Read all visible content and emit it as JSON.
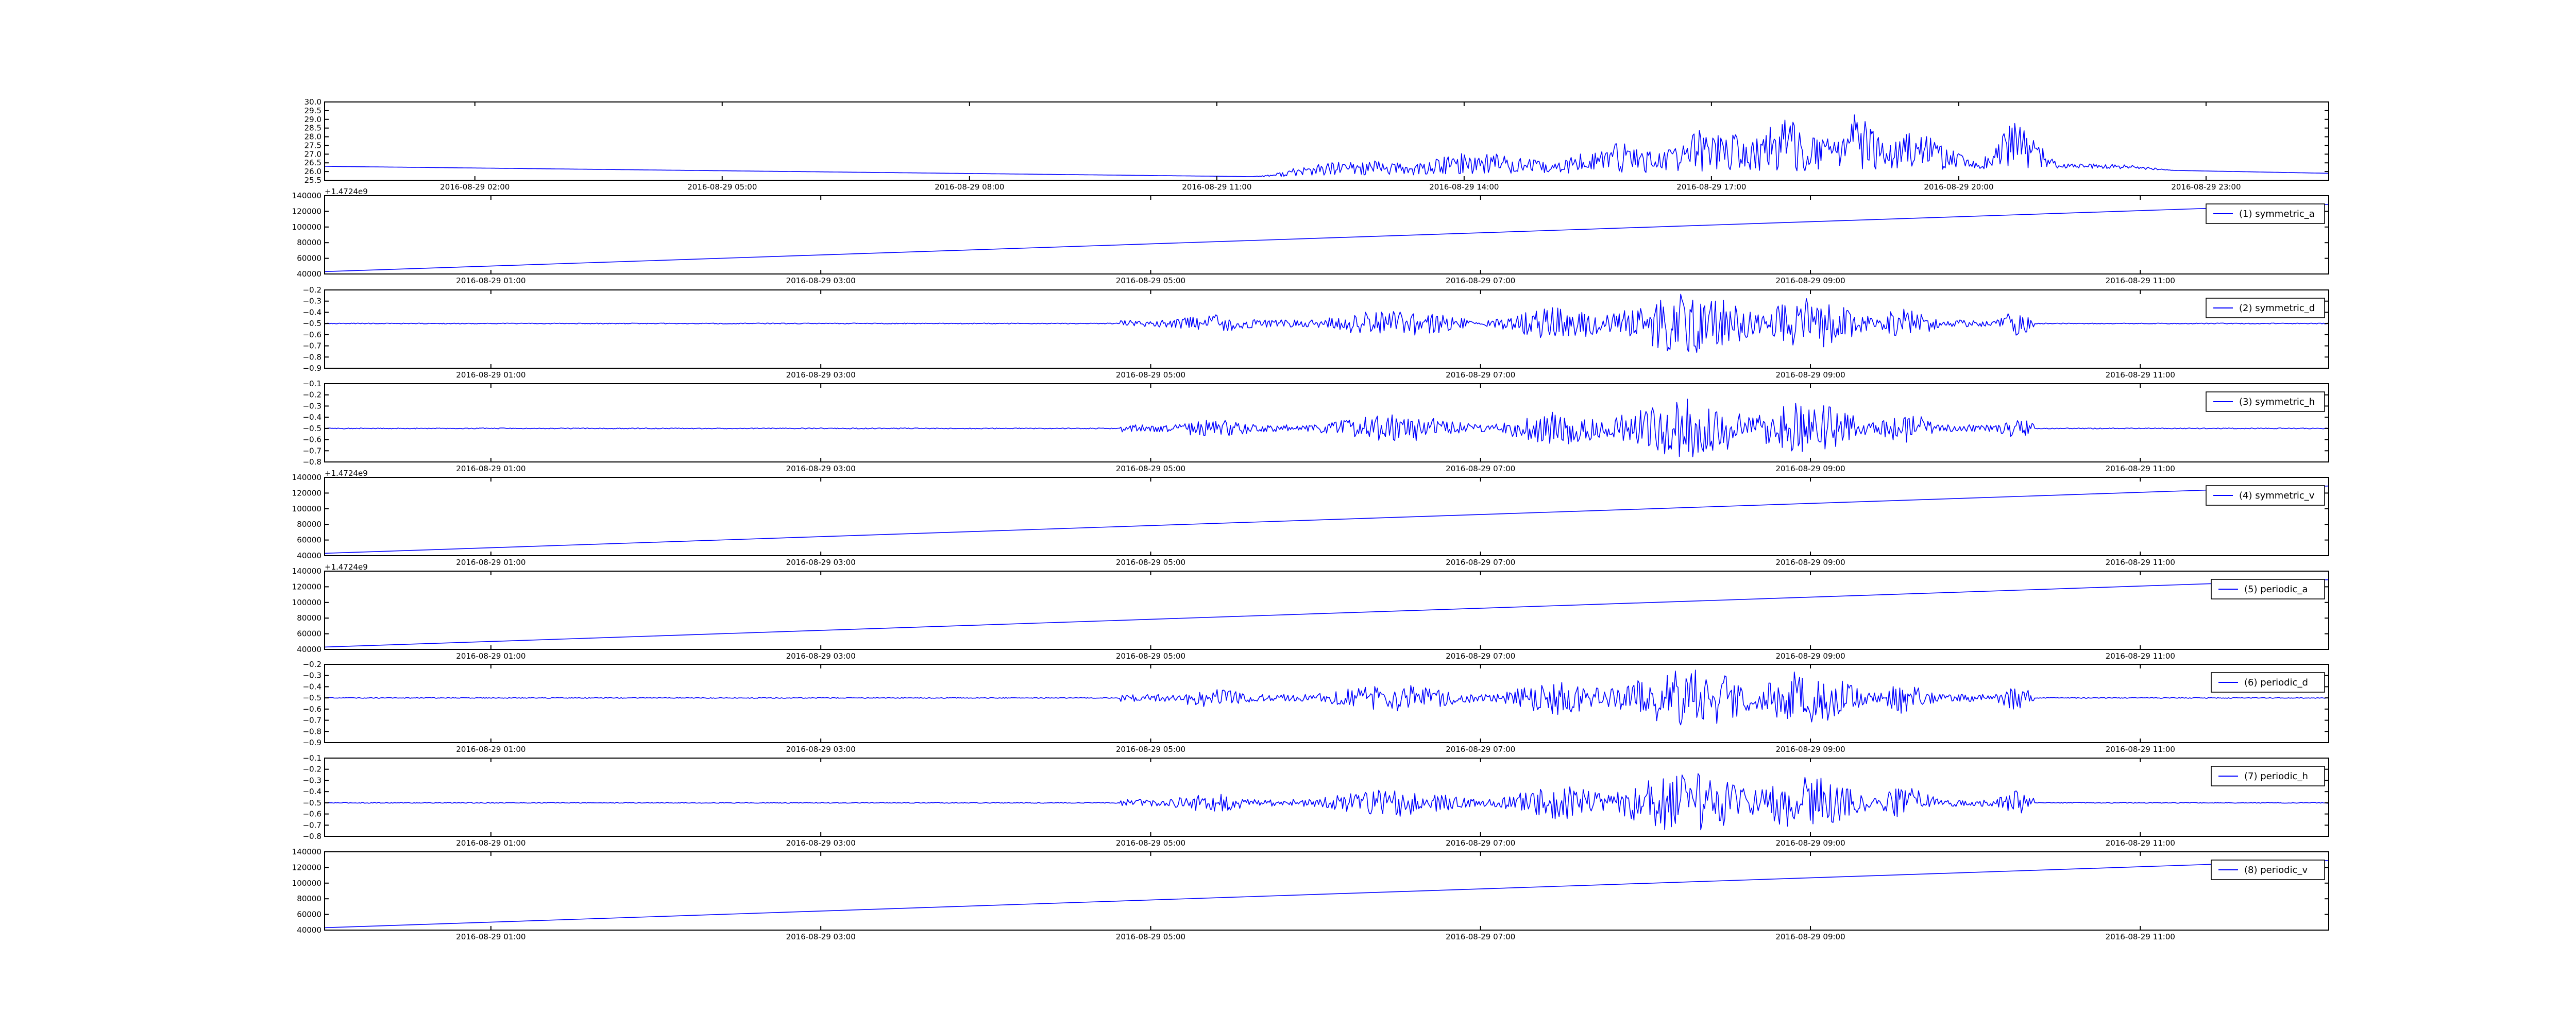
{
  "figure": {
    "background": "#ffffff",
    "line_color": "#0000ff"
  },
  "chart_data": [
    {
      "type": "line",
      "panel": 0,
      "title": "",
      "ylim": [
        25.5,
        30.0
      ],
      "yticks": [
        "30.0",
        "29.5",
        "29.0",
        "28.5",
        "28.0",
        "27.5",
        "27.0",
        "26.5",
        "26.0",
        "25.5"
      ],
      "yticks_values": [
        30.0,
        29.5,
        29.0,
        28.5,
        28.0,
        27.5,
        27.0,
        26.5,
        26.0,
        25.5
      ],
      "xticks": [
        "2016-08-29 02:00",
        "2016-08-29 05:00",
        "2016-08-29 08:00",
        "2016-08-29 11:00",
        "2016-08-29 14:00",
        "2016-08-29 17:00",
        "2016-08-29 20:00",
        "2016-08-29 23:00"
      ],
      "x_range": [
        "2016-08-29 00:08",
        "2016-08-29 24:22"
      ],
      "baseline": [
        {
          "x": "2016-08-29 00:08",
          "y": 26.3
        },
        {
          "x": "2016-08-29 11:30",
          "y": 25.7
        },
        {
          "x": "2016-08-29 21:00",
          "y": 26.2
        },
        {
          "x": "2016-08-29 24:22",
          "y": 25.9
        }
      ],
      "activity_start": "2016-08-29 11:20",
      "activity_end": "2016-08-29 22:30",
      "activity_max": 29.7,
      "legend": null
    },
    {
      "type": "line",
      "panel": 1,
      "offset_text": "+1.4724e9",
      "ylim": [
        40000,
        140000
      ],
      "yticks": [
        "140000",
        "120000",
        "100000",
        "80000",
        "60000",
        "40000"
      ],
      "yticks_values": [
        140000,
        120000,
        100000,
        80000,
        60000,
        40000
      ],
      "xticks": [
        "2016-08-29 01:00",
        "2016-08-29 03:00",
        "2016-08-29 05:00",
        "2016-08-29 07:00",
        "2016-08-29 09:00",
        "2016-08-29 11:00"
      ],
      "x_range": [
        "2016-08-29 00:23",
        "2016-08-29 12:38"
      ],
      "points": [
        {
          "x": "2016-08-29 00:23",
          "y": 43000
        },
        {
          "x": "2016-08-29 12:38",
          "y": 129000
        }
      ],
      "legend": "(1) symmetric_a"
    },
    {
      "type": "line",
      "panel": 2,
      "ylim": [
        -0.9,
        -0.2
      ],
      "yticks": [
        "−0.2",
        "−0.3",
        "−0.4",
        "−0.5",
        "−0.6",
        "−0.7",
        "−0.8",
        "−0.9"
      ],
      "yticks_values": [
        -0.2,
        -0.3,
        -0.4,
        -0.5,
        -0.6,
        -0.7,
        -0.8,
        -0.9
      ],
      "xticks": [
        "2016-08-29 01:00",
        "2016-08-29 03:00",
        "2016-08-29 05:00",
        "2016-08-29 07:00",
        "2016-08-29 09:00",
        "2016-08-29 11:00"
      ],
      "x_range": [
        "2016-08-29 00:23",
        "2016-08-29 12:38"
      ],
      "baseline_y": -0.5,
      "activity_start": "2016-08-29 05:15",
      "activity_end": "2016-08-29 10:50",
      "activity_amplitude": 0.27,
      "legend": "(2) symmetric_d"
    },
    {
      "type": "line",
      "panel": 3,
      "ylim": [
        -0.8,
        -0.1
      ],
      "yticks": [
        "−0.1",
        "−0.2",
        "−0.3",
        "−0.4",
        "−0.5",
        "−0.6",
        "−0.7",
        "−0.8"
      ],
      "yticks_values": [
        -0.1,
        -0.2,
        -0.3,
        -0.4,
        -0.5,
        -0.6,
        -0.7,
        -0.8
      ],
      "xticks": [
        "2016-08-29 01:00",
        "2016-08-29 03:00",
        "2016-08-29 05:00",
        "2016-08-29 07:00",
        "2016-08-29 09:00",
        "2016-08-29 11:00"
      ],
      "x_range": [
        "2016-08-29 00:23",
        "2016-08-29 12:38"
      ],
      "baseline_y": -0.5,
      "activity_start": "2016-08-29 05:15",
      "activity_end": "2016-08-29 10:50",
      "activity_amplitude": 0.27,
      "legend": "(3) symmetric_h"
    },
    {
      "type": "line",
      "panel": 4,
      "offset_text": "+1.4724e9",
      "ylim": [
        40000,
        140000
      ],
      "yticks": [
        "140000",
        "120000",
        "100000",
        "80000",
        "60000",
        "40000"
      ],
      "yticks_values": [
        140000,
        120000,
        100000,
        80000,
        60000,
        40000
      ],
      "xticks": [
        "2016-08-29 01:00",
        "2016-08-29 03:00",
        "2016-08-29 05:00",
        "2016-08-29 07:00",
        "2016-08-29 09:00",
        "2016-08-29 11:00"
      ],
      "x_range": [
        "2016-08-29 00:23",
        "2016-08-29 12:38"
      ],
      "points": [
        {
          "x": "2016-08-29 00:23",
          "y": 43000
        },
        {
          "x": "2016-08-29 12:38",
          "y": 129000
        }
      ],
      "legend": "(4) symmetric_v"
    },
    {
      "type": "line",
      "panel": 5,
      "offset_text": "+1.4724e9",
      "ylim": [
        40000,
        140000
      ],
      "yticks": [
        "140000",
        "120000",
        "100000",
        "80000",
        "60000",
        "40000"
      ],
      "yticks_values": [
        140000,
        120000,
        100000,
        80000,
        60000,
        40000
      ],
      "xticks": [
        "2016-08-29 01:00",
        "2016-08-29 03:00",
        "2016-08-29 05:00",
        "2016-08-29 07:00",
        "2016-08-29 09:00",
        "2016-08-29 11:00"
      ],
      "x_range": [
        "2016-08-29 00:23",
        "2016-08-29 12:38"
      ],
      "points": [
        {
          "x": "2016-08-29 00:23",
          "y": 43000
        },
        {
          "x": "2016-08-29 12:38",
          "y": 129000
        }
      ],
      "legend": "(5) periodic_a"
    },
    {
      "type": "line",
      "panel": 6,
      "ylim": [
        -0.9,
        -0.2
      ],
      "yticks": [
        "−0.2",
        "−0.3",
        "−0.4",
        "−0.5",
        "−0.6",
        "−0.7",
        "−0.8",
        "−0.9"
      ],
      "yticks_values": [
        -0.2,
        -0.3,
        -0.4,
        -0.5,
        -0.6,
        -0.7,
        -0.8,
        -0.9
      ],
      "xticks": [
        "2016-08-29 01:00",
        "2016-08-29 03:00",
        "2016-08-29 05:00",
        "2016-08-29 07:00",
        "2016-08-29 09:00",
        "2016-08-29 11:00"
      ],
      "x_range": [
        "2016-08-29 00:23",
        "2016-08-29 12:38"
      ],
      "baseline_y": -0.5,
      "activity_start": "2016-08-29 05:15",
      "activity_end": "2016-08-29 10:50",
      "activity_amplitude": 0.27,
      "legend": "(6) periodic_d"
    },
    {
      "type": "line",
      "panel": 7,
      "ylim": [
        -0.8,
        -0.1
      ],
      "yticks": [
        "−0.1",
        "−0.2",
        "−0.3",
        "−0.4",
        "−0.5",
        "−0.6",
        "−0.7",
        "−0.8"
      ],
      "yticks_values": [
        -0.1,
        -0.2,
        -0.3,
        -0.4,
        -0.5,
        -0.6,
        -0.7,
        -0.8
      ],
      "xticks": [
        "2016-08-29 01:00",
        "2016-08-29 03:00",
        "2016-08-29 05:00",
        "2016-08-29 07:00",
        "2016-08-29 09:00",
        "2016-08-29 11:00"
      ],
      "x_range": [
        "2016-08-29 00:23",
        "2016-08-29 12:38"
      ],
      "baseline_y": -0.5,
      "activity_start": "2016-08-29 05:15",
      "activity_end": "2016-08-29 10:50",
      "activity_amplitude": 0.27,
      "legend": "(7) periodic_h"
    },
    {
      "type": "line",
      "panel": 8,
      "ylim": [
        40000,
        140000
      ],
      "yticks": [
        "140000",
        "120000",
        "100000",
        "80000",
        "60000",
        "40000"
      ],
      "yticks_values": [
        140000,
        120000,
        100000,
        80000,
        60000,
        40000
      ],
      "xticks": [
        "2016-08-29 01:00",
        "2016-08-29 03:00",
        "2016-08-29 05:00",
        "2016-08-29 07:00",
        "2016-08-29 09:00",
        "2016-08-29 11:00"
      ],
      "x_range": [
        "2016-08-29 00:23",
        "2016-08-29 12:38"
      ],
      "points": [
        {
          "x": "2016-08-29 00:23",
          "y": 43000
        },
        {
          "x": "2016-08-29 12:38",
          "y": 129000
        }
      ],
      "legend": "(8) periodic_v"
    }
  ]
}
